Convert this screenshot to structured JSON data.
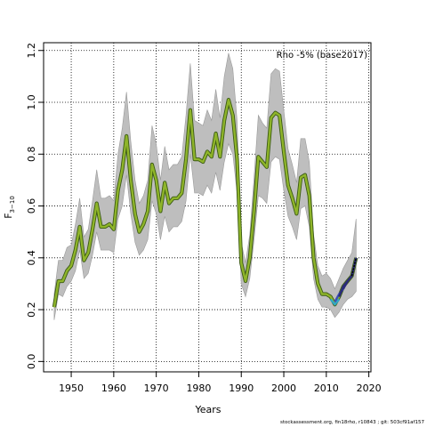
{
  "chart_data": {
    "type": "line",
    "xlabel": "Years",
    "ylabel": "F",
    "ylabel_subscript": "3−10",
    "xlim": [
      1943.5,
      2020.5
    ],
    "ylim": [
      -0.04,
      1.23
    ],
    "x_ticks": [
      1950,
      1960,
      1970,
      1980,
      1990,
      2000,
      2010,
      2020
    ],
    "y_ticks": [
      0.0,
      0.2,
      0.4,
      0.6,
      0.8,
      1.0,
      1.2
    ],
    "grid": true,
    "legend": "Rho -5% (base2017)",
    "legend_position": "top-right",
    "colors": {
      "band": "#bebebe",
      "band_edge": "#9a9a9a",
      "main_line": "#8fb52a",
      "main_outline": "#3b5a14",
      "retro_1": "#2fa8c8",
      "retro_2": "#3b4fb8",
      "retro_3": "#2a2a7a",
      "retro_terminal": "#000000"
    },
    "x": [
      1946,
      1947,
      1948,
      1949,
      1950,
      1951,
      1952,
      1953,
      1954,
      1955,
      1956,
      1957,
      1958,
      1959,
      1960,
      1961,
      1962,
      1963,
      1964,
      1965,
      1966,
      1967,
      1968,
      1969,
      1970,
      1971,
      1972,
      1973,
      1974,
      1975,
      1976,
      1977,
      1978,
      1979,
      1980,
      1981,
      1982,
      1983,
      1984,
      1985,
      1986,
      1987,
      1988,
      1989,
      1990,
      1991,
      1992,
      1993,
      1994,
      1995,
      1996,
      1997,
      1998,
      1999,
      2000,
      2001,
      2002,
      2003,
      2004,
      2005,
      2006,
      2007,
      2008,
      2009,
      2010,
      2011,
      2012,
      2013,
      2014,
      2015,
      2016,
      2017
    ],
    "estimate": [
      0.21,
      0.31,
      0.31,
      0.35,
      0.37,
      0.43,
      0.52,
      0.39,
      0.42,
      0.51,
      0.61,
      0.52,
      0.52,
      0.53,
      0.51,
      0.66,
      0.74,
      0.87,
      0.7,
      0.57,
      0.5,
      0.53,
      0.58,
      0.76,
      0.7,
      0.58,
      0.69,
      0.61,
      0.63,
      0.63,
      0.65,
      0.78,
      0.97,
      0.78,
      0.78,
      0.77,
      0.81,
      0.79,
      0.88,
      0.79,
      0.93,
      1.01,
      0.95,
      0.78,
      0.38,
      0.31,
      0.4,
      0.58,
      0.79,
      0.77,
      0.75,
      0.94,
      0.96,
      0.95,
      0.81,
      0.68,
      0.63,
      0.57,
      0.71,
      0.72,
      0.64,
      0.4,
      0.3,
      0.26,
      0.26,
      0.25,
      0.22,
      0.25,
      0.29,
      0.31,
      0.33,
      0.4
    ],
    "lower": [
      0.16,
      0.26,
      0.25,
      0.29,
      0.31,
      0.35,
      0.43,
      0.32,
      0.34,
      0.41,
      0.5,
      0.43,
      0.43,
      0.43,
      0.42,
      0.55,
      0.6,
      0.72,
      0.57,
      0.46,
      0.41,
      0.43,
      0.47,
      0.62,
      0.57,
      0.47,
      0.56,
      0.5,
      0.52,
      0.52,
      0.54,
      0.62,
      0.8,
      0.65,
      0.65,
      0.64,
      0.68,
      0.65,
      0.73,
      0.66,
      0.77,
      0.84,
      0.8,
      0.65,
      0.3,
      0.25,
      0.32,
      0.47,
      0.64,
      0.63,
      0.61,
      0.77,
      0.79,
      0.78,
      0.66,
      0.56,
      0.52,
      0.47,
      0.59,
      0.6,
      0.52,
      0.32,
      0.24,
      0.21,
      0.21,
      0.2,
      0.17,
      0.19,
      0.22,
      0.24,
      0.25,
      0.27
    ],
    "upper": [
      0.26,
      0.39,
      0.39,
      0.44,
      0.45,
      0.53,
      0.63,
      0.48,
      0.51,
      0.62,
      0.74,
      0.63,
      0.63,
      0.64,
      0.62,
      0.8,
      0.9,
      1.04,
      0.85,
      0.7,
      0.61,
      0.64,
      0.7,
      0.91,
      0.84,
      0.7,
      0.83,
      0.74,
      0.76,
      0.76,
      0.79,
      0.95,
      1.15,
      0.93,
      0.92,
      0.91,
      0.97,
      0.93,
      1.05,
      0.94,
      1.1,
      1.19,
      1.13,
      0.93,
      0.46,
      0.38,
      0.49,
      0.71,
      0.95,
      0.92,
      0.9,
      1.11,
      1.13,
      1.12,
      0.97,
      0.82,
      0.76,
      0.69,
      0.86,
      0.86,
      0.77,
      0.49,
      0.37,
      0.33,
      0.34,
      0.32,
      0.28,
      0.32,
      0.36,
      0.39,
      0.42,
      0.55
    ],
    "retro": [
      {
        "x": [
          2011,
          2012,
          2013
        ],
        "y": [
          0.24,
          0.22,
          0.24
        ]
      },
      {
        "x": [
          2012,
          2013,
          2014
        ],
        "y": [
          0.23,
          0.26,
          0.28
        ]
      },
      {
        "x": [
          2013,
          2014,
          2015
        ],
        "y": [
          0.25,
          0.29,
          0.31
        ]
      },
      {
        "x": [
          2014,
          2015,
          2016,
          2017
        ],
        "y": [
          0.28,
          0.31,
          0.33,
          0.4
        ]
      }
    ]
  },
  "footer": "stockassessment.org, fin18rho, r10843 ; git: 503cf91af157"
}
